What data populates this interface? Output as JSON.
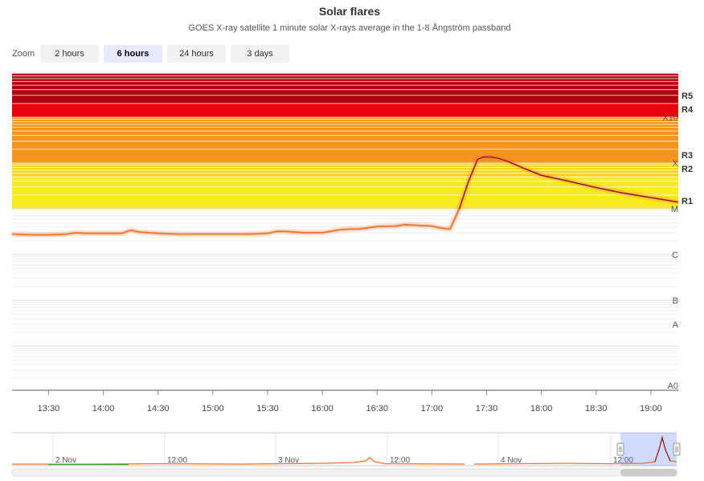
{
  "title": "Solar flares",
  "subtitle": "GOES X-ray satellite 1 minute solar X-rays average in the 1-8 Ångström passband",
  "zoom": {
    "label": "Zoom",
    "buttons": [
      "2 hours",
      "6 hours",
      "24 hours",
      "3 days"
    ],
    "active": "6 hours"
  },
  "chart_data": {
    "type": "line",
    "title": "Solar flares",
    "subtitle": "GOES X-ray satellite 1 minute solar X-rays average in the 1-8 Ångström passband",
    "y_scale": "log",
    "ylim": [
      1e-08,
      0.003
    ],
    "x_range": [
      "13:10",
      "19:15"
    ],
    "x_ticks": [
      "13:30",
      "14:00",
      "14:30",
      "15:00",
      "15:30",
      "16:00",
      "16:30",
      "17:00",
      "17:30",
      "18:00",
      "18:30",
      "19:00"
    ],
    "y_band_labels": [
      {
        "label": "A0",
        "value": 1e-08
      },
      {
        "label": "A",
        "value": 1e-08
      },
      {
        "label": "B",
        "value": 1e-07
      },
      {
        "label": "C",
        "value": 1e-06
      },
      {
        "label": "M",
        "value": 1e-05
      },
      {
        "label": "X",
        "value": 0.0001
      },
      {
        "label": "X10",
        "value": 0.001
      }
    ],
    "radio_blackout_labels": [
      {
        "label": "R1",
        "value": 1e-05
      },
      {
        "label": "R2",
        "value": 5e-05
      },
      {
        "label": "R3",
        "value": 0.0001
      },
      {
        "label": "R4",
        "value": 0.001
      },
      {
        "label": "R5",
        "value": 0.002
      }
    ],
    "band_colors": {
      "M": "#f5eb1e",
      "X": "#f7941d",
      "X10": "#e8000b",
      "R5": "#b3000d"
    },
    "line_color": "#e8732a",
    "series": [
      {
        "x": [
          "13:10",
          "13:20",
          "13:30",
          "13:40",
          "13:45",
          "13:50",
          "14:00",
          "14:10",
          "14:15",
          "14:20",
          "14:30",
          "14:40",
          "14:50",
          "15:00",
          "15:10",
          "15:20",
          "15:30",
          "15:35",
          "15:40",
          "15:50",
          "16:00",
          "16:10",
          "16:15",
          "16:20",
          "16:30",
          "16:40",
          "16:45",
          "16:50",
          "17:00",
          "17:05",
          "17:10",
          "17:15",
          "17:20",
          "17:25",
          "17:28",
          "17:32",
          "17:36",
          "17:40",
          "17:45",
          "17:50",
          "18:00",
          "18:15",
          "18:30",
          "18:45",
          "19:00",
          "19:15"
        ],
        "y": [
          2.8e-06,
          2.7e-06,
          2.7e-06,
          2.8e-06,
          3e-06,
          2.9e-06,
          2.9e-06,
          2.9e-06,
          3.4e-06,
          3.1e-06,
          2.9e-06,
          2.8e-06,
          2.8e-06,
          2.8e-06,
          2.8e-06,
          2.8e-06,
          2.9e-06,
          3.2e-06,
          3.2e-06,
          3e-06,
          3e-06,
          3.5e-06,
          3.6e-06,
          3.6e-06,
          4.1e-06,
          4.2e-06,
          4.5e-06,
          4.4e-06,
          4.2e-06,
          3.8e-06,
          3.6e-06,
          1e-05,
          3.9e-05,
          0.00012,
          0.000135,
          0.000136,
          0.000128,
          0.000115,
          9.5e-05,
          7.8e-05,
          5.4e-05,
          4e-05,
          2.9e-05,
          2.2e-05,
          1.75e-05,
          1.4e-05
        ]
      }
    ],
    "navigator": {
      "labels": [
        "2 Nov",
        "12:00",
        "3 Nov",
        "12:00",
        "4 Nov",
        "12:00"
      ]
    }
  }
}
